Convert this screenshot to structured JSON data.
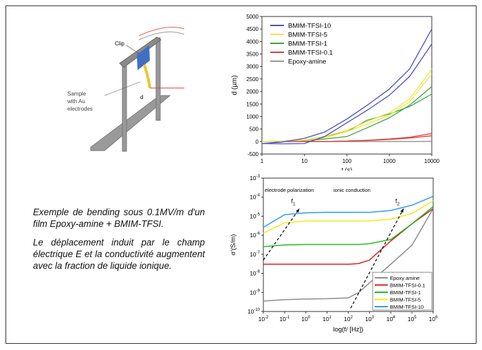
{
  "setup_figure": {
    "clip_label": "Clip",
    "sample_label": [
      "Sample",
      "with Au",
      "electrodes"
    ],
    "d_label": "d"
  },
  "caption": {
    "paragraph1": "Exemple de bending sous 0.1MV/m d'un film Epoxy-amine + BMIM-TFSI.",
    "paragraph2": "Le déplacement induit par le champ électrique E et la conductivité augmentent avec la fraction de liquide ionique."
  },
  "chart_data": [
    {
      "type": "line",
      "ylabel": "d (µm)",
      "xlabel": "t (s)",
      "xscale": "log",
      "xlim": [
        1,
        10000
      ],
      "ylim": [
        -500,
        5000
      ],
      "xticks": [
        "1",
        "10",
        "100",
        "1000",
        "10000"
      ],
      "xtick_values": [
        1,
        10,
        100,
        1000,
        10000
      ],
      "yticks": [
        -500,
        0,
        500,
        1000,
        1500,
        2000,
        2500,
        3000,
        3500,
        4000,
        4500,
        5000
      ],
      "legend_position": "top-left",
      "x": [
        1,
        3,
        10,
        30,
        100,
        300,
        1000,
        3000,
        10000
      ],
      "series": [
        {
          "name": "BMIM-TFSI-10",
          "color": "#4b4bc8",
          "values": [
            -80,
            -20,
            130,
            380,
            900,
            1450,
            2100,
            2900,
            4500
          ],
          "values_2": [
            -80,
            -90,
            -80,
            200,
            750,
            1250,
            1850,
            2600,
            3900
          ]
        },
        {
          "name": "BMIM-TFSI-5",
          "color": "#f5e44a",
          "values": [
            0,
            20,
            60,
            200,
            450,
            800,
            1150,
            1700,
            2900
          ],
          "values_2": [
            0,
            20,
            50,
            150,
            400,
            700,
            1050,
            1600,
            2700
          ]
        },
        {
          "name": "BMIM-TFSI-1",
          "color": "#3aa83a",
          "values": [
            0,
            20,
            60,
            200,
            400,
            850,
            1100,
            1400,
            1900
          ],
          "values_2": [
            0,
            10,
            40,
            100,
            200,
            550,
            950,
            1450,
            2200
          ]
        },
        {
          "name": "BMIM-TFSI-0.1",
          "color": "#e03a3a",
          "values": [
            0,
            0,
            0,
            0,
            20,
            50,
            100,
            170,
            320
          ],
          "values_2": [
            0,
            0,
            0,
            0,
            15,
            40,
            80,
            140,
            230
          ]
        },
        {
          "name": "Epoxy-amine",
          "color": "#999999",
          "values": [
            0,
            0,
            0,
            0,
            0,
            0,
            0,
            0,
            10
          ],
          "values_2": [
            0,
            0,
            0,
            0,
            0,
            0,
            0,
            0,
            5
          ]
        }
      ]
    },
    {
      "type": "line",
      "ylabel": "σ'(S/m)",
      "xlabel": "log(f/ [Hz])",
      "xscale": "log",
      "yscale": "log",
      "xlim": [
        0.01,
        1000000
      ],
      "ylim": [
        1e-10,
        0.001
      ],
      "xtick_exponents": [
        -2,
        -1,
        0,
        1,
        2,
        3,
        4,
        5,
        6
      ],
      "ytick_exponents": [
        -10,
        -9,
        -8,
        -7,
        -6,
        -5,
        -4,
        -3
      ],
      "annotations": [
        "electrode polarization",
        "ionic conduction",
        "f1",
        "f2"
      ],
      "legend_position": "bottom-right",
      "x": [
        0.01,
        0.1,
        1,
        10,
        100,
        316,
        1000,
        10000,
        100000,
        1000000
      ],
      "series": [
        {
          "name": "Epoxy amine",
          "color": "#8c8c8c",
          "values": [
            3.5e-10,
            4.2e-10,
            4.5e-10,
            4.7e-10,
            5.2e-10,
            1e-09,
            3.2e-09,
            3e-08,
            3e-07,
            2.5e-05
          ]
        },
        {
          "name": "BMIM-TFSI-0.1",
          "color": "#e02020",
          "values": [
            3e-08,
            3e-08,
            3e-08,
            3e-08,
            3e-08,
            3.3e-08,
            5e-08,
            5e-07,
            4e-06,
            2.5e-05
          ]
        },
        {
          "name": "BMIM-TFSI-1",
          "color": "#22bb22",
          "values": [
            2.5e-07,
            3.1e-07,
            3.3e-07,
            3.3e-07,
            3.3e-07,
            3.3e-07,
            3.6e-07,
            6e-07,
            4e-06,
            3.2e-05
          ]
        },
        {
          "name": "BMIM-TFSI-5",
          "color": "#f2ea1a",
          "values": [
            1.3e-06,
            4.5e-06,
            5.6e-06,
            5.6e-06,
            5.6e-06,
            5.6e-06,
            5.7e-06,
            7e-06,
            1.4e-05,
            6.5e-05
          ]
        },
        {
          "name": "BMIM-TFSI-10",
          "color": "#2a9df4",
          "values": [
            2.6e-06,
            1.2e-05,
            1.5e-05,
            1.6e-05,
            1.6e-05,
            1.6e-05,
            1.6e-05,
            2e-05,
            3.8e-05,
            0.00011
          ]
        }
      ],
      "dashed_arrows": [
        {
          "label": "f1",
          "from": [
            0.01,
            5e-08
          ],
          "to": [
            0.5,
            2.5e-05
          ]
        },
        {
          "label": "f2",
          "from": [
            130,
            1.5e-10
          ],
          "to": [
            40000,
            2.5e-05
          ]
        }
      ]
    }
  ]
}
